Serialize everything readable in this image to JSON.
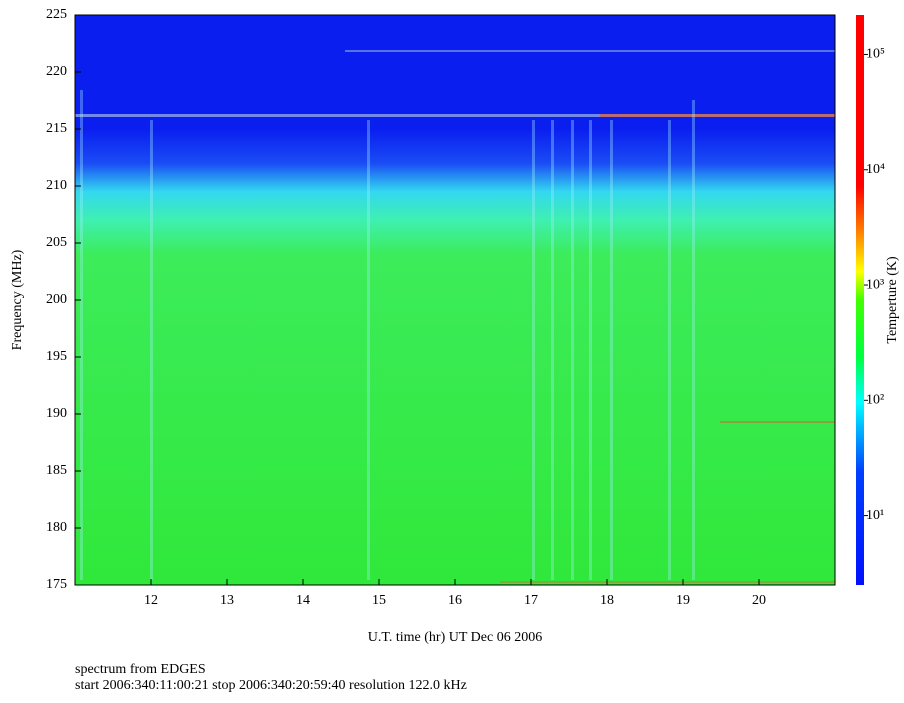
{
  "chart_data": {
    "type": "heatmap",
    "xlabel": "U.T. time (hr) UT Dec 06 2006",
    "ylabel": "Frequency (MHz)",
    "colorbar_label": "Temperture (K)",
    "notes": [
      "spectrum from EDGES",
      "start 2006:340:11:00:21 stop 2006:340:20:59:40 resolution 122.0 kHz"
    ],
    "xlim": [
      11,
      21
    ],
    "xticks": [
      12,
      13,
      14,
      15,
      16,
      17,
      18,
      19,
      20
    ],
    "ylim": [
      175,
      225
    ],
    "yticks": [
      175,
      180,
      185,
      190,
      195,
      200,
      205,
      210,
      215,
      220,
      225
    ],
    "clim": [
      2.5,
      220000
    ],
    "clog": true,
    "cticks": [
      {
        "value": 10,
        "label": "10¹"
      },
      {
        "value": 100,
        "label": "10²"
      },
      {
        "value": 1000,
        "label": "10³"
      },
      {
        "value": 10000,
        "label": "10⁴"
      },
      {
        "value": 100000,
        "label": "10⁵"
      }
    ]
  }
}
